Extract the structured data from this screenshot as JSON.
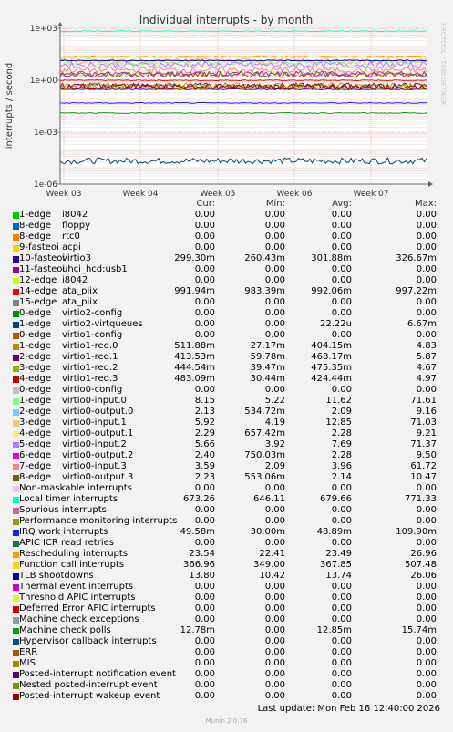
{
  "chart_data": {
    "type": "line",
    "title": "Individual interrupts - by month",
    "ylabel": "interrupts / second",
    "scale": "log",
    "ylim": [
      1e-06,
      1000
    ],
    "y_ticks": [
      "1e-06",
      "1e-03",
      "1e+00",
      "1e+03"
    ],
    "x_ticks": [
      "Week 03",
      "Week 04",
      "Week 05",
      "Week 06",
      "Week 07"
    ],
    "watermark": "RRDTOOL / TOBI OETIKER",
    "columns": [
      "Cur:",
      "Min:",
      "Avg:",
      "Max:"
    ],
    "series": [
      {
        "label": "1-edge",
        "device": "i8042",
        "color": "#00cc00",
        "values": [
          "0.00",
          "0.00",
          "0.00",
          "0.00"
        ]
      },
      {
        "label": "8-edge",
        "device": "floppy",
        "color": "#0066b3",
        "values": [
          "0.00",
          "0.00",
          "0.00",
          "0.00"
        ]
      },
      {
        "label": "8-edge",
        "device": "rtc0",
        "color": "#ff8000",
        "values": [
          "0.00",
          "0.00",
          "0.00",
          "0.00"
        ]
      },
      {
        "label": "9-fasteoi",
        "device": "acpi",
        "color": "#ffcc00",
        "values": [
          "0.00",
          "0.00",
          "0.00",
          "0.00"
        ]
      },
      {
        "label": "10-fasteoi",
        "device": "virtio3",
        "color": "#330099",
        "values": [
          "299.30m",
          "260.43m",
          "301.88m",
          "326.67m"
        ]
      },
      {
        "label": "11-fasteoi",
        "device": "uhci_hcd:usb1",
        "color": "#990099",
        "values": [
          "0.00",
          "0.00",
          "0.00",
          "0.00"
        ]
      },
      {
        "label": "12-edge",
        "device": "i8042",
        "color": "#ccff00",
        "values": [
          "0.00",
          "0.00",
          "0.00",
          "0.00"
        ]
      },
      {
        "label": "14-edge",
        "device": "ata_piix",
        "color": "#ff0000",
        "values": [
          "991.94m",
          "983.39m",
          "992.06m",
          "997.22m"
        ]
      },
      {
        "label": "15-edge",
        "device": "ata_piix",
        "color": "#808080",
        "values": [
          "0.00",
          "0.00",
          "0.00",
          "0.00"
        ]
      },
      {
        "label": "0-edge",
        "device": "virtio2-config",
        "color": "#008f00",
        "values": [
          "0.00",
          "0.00",
          "0.00",
          "0.00"
        ]
      },
      {
        "label": "1-edge",
        "device": "virtio2-virtqueues",
        "color": "#00487d",
        "values": [
          "0.00",
          "0.00",
          "22.22u",
          "6.67m"
        ]
      },
      {
        "label": "0-edge",
        "device": "virtio1-config",
        "color": "#b35a00",
        "values": [
          "0.00",
          "0.00",
          "0.00",
          "0.00"
        ]
      },
      {
        "label": "1-edge",
        "device": "virtio1-req.0",
        "color": "#b38f00",
        "values": [
          "511.88m",
          "27.17m",
          "404.15m",
          "4.83"
        ]
      },
      {
        "label": "2-edge",
        "device": "virtio1-req.1",
        "color": "#6b006b",
        "values": [
          "413.53m",
          "59.78m",
          "468.17m",
          "5.87"
        ]
      },
      {
        "label": "3-edge",
        "device": "virtio1-req.2",
        "color": "#8fb300",
        "values": [
          "444.54m",
          "39.47m",
          "475.35m",
          "4.67"
        ]
      },
      {
        "label": "4-edge",
        "device": "virtio1-req.3",
        "color": "#b30000",
        "values": [
          "483.09m",
          "30.44m",
          "424.44m",
          "4.97"
        ]
      },
      {
        "label": "0-edge",
        "device": "virtio0-config",
        "color": "#bebebe",
        "values": [
          "0.00",
          "0.00",
          "0.00",
          "0.00"
        ]
      },
      {
        "label": "1-edge",
        "device": "virtio0-input.0",
        "color": "#80ff80",
        "values": [
          "8.15",
          "5.22",
          "11.62",
          "71.61"
        ]
      },
      {
        "label": "2-edge",
        "device": "virtio0-output.0",
        "color": "#80c9ff",
        "values": [
          "2.13",
          "534.72m",
          "2.09",
          "9.16"
        ]
      },
      {
        "label": "3-edge",
        "device": "virtio0-input.1",
        "color": "#ffc080",
        "values": [
          "5.92",
          "4.19",
          "12.85",
          "71.03"
        ]
      },
      {
        "label": "4-edge",
        "device": "virtio0-output.1",
        "color": "#ffe680",
        "values": [
          "2.29",
          "657.42m",
          "2.28",
          "9.21"
        ]
      },
      {
        "label": "5-edge",
        "device": "virtio0-input.2",
        "color": "#aa80ff",
        "values": [
          "5.66",
          "3.92",
          "7.69",
          "71.37"
        ]
      },
      {
        "label": "6-edge",
        "device": "virtio0-output.2",
        "color": "#ee00cc",
        "values": [
          "2.40",
          "750.03m",
          "2.28",
          "9.50"
        ]
      },
      {
        "label": "7-edge",
        "device": "virtio0-input.3",
        "color": "#ff8080",
        "values": [
          "3.59",
          "2.09",
          "3.96",
          "61.72"
        ]
      },
      {
        "label": "8-edge",
        "device": "virtio0-output.3",
        "color": "#666600",
        "values": [
          "2.23",
          "553.06m",
          "2.14",
          "10.47"
        ]
      },
      {
        "label": "Non-maskable interrupts",
        "device": "",
        "color": "#ffbfff",
        "values": [
          "0.00",
          "0.00",
          "0.00",
          "0.00"
        ]
      },
      {
        "label": "Local timer interrupts",
        "device": "",
        "color": "#00ffcc",
        "values": [
          "673.26",
          "646.11",
          "679.66",
          "771.33"
        ]
      },
      {
        "label": "Spurious interrupts",
        "device": "",
        "color": "#cc6699",
        "values": [
          "0.00",
          "0.00",
          "0.00",
          "0.00"
        ]
      },
      {
        "label": "Performance monitoring interrupts",
        "device": "",
        "color": "#999900",
        "values": [
          "0.00",
          "0.00",
          "0.00",
          "0.00"
        ]
      },
      {
        "label": "IRQ work interrupts",
        "device": "",
        "color": "#1a1aff",
        "values": [
          "49.58m",
          "30.00m",
          "48.89m",
          "109.90m"
        ]
      },
      {
        "label": "APIC ICR read retries",
        "device": "",
        "color": "#0a7a52",
        "values": [
          "0.00",
          "0.00",
          "0.00",
          "0.00"
        ]
      },
      {
        "label": "Rescheduling interrupts",
        "device": "",
        "color": "#ff9900",
        "values": [
          "23.54",
          "22.41",
          "23.49",
          "26.96"
        ]
      },
      {
        "label": "Function call interrupts",
        "device": "",
        "color": "#ffd500",
        "values": [
          "366.96",
          "349.00",
          "367.85",
          "507.48"
        ]
      },
      {
        "label": "TLB shootdowns",
        "device": "",
        "color": "#000099",
        "values": [
          "13.80",
          "10.42",
          "13.74",
          "26.06"
        ]
      },
      {
        "label": "Thermal event interrupts",
        "device": "",
        "color": "#cc00cc",
        "values": [
          "0.00",
          "0.00",
          "0.00",
          "0.00"
        ]
      },
      {
        "label": "Threshold APIC interrupts",
        "device": "",
        "color": "#ccff33",
        "values": [
          "0.00",
          "0.00",
          "0.00",
          "0.00"
        ]
      },
      {
        "label": "Deferred Error APIC interrupts",
        "device": "",
        "color": "#cc0000",
        "values": [
          "0.00",
          "0.00",
          "0.00",
          "0.00"
        ]
      },
      {
        "label": "Machine check exceptions",
        "device": "",
        "color": "#999999",
        "values": [
          "0.00",
          "0.00",
          "0.00",
          "0.00"
        ]
      },
      {
        "label": "Machine check polls",
        "device": "",
        "color": "#00a300",
        "values": [
          "12.78m",
          "0.00",
          "12.85m",
          "15.74m"
        ]
      },
      {
        "label": "Hypervisor callback interrupts",
        "device": "",
        "color": "#005580",
        "values": [
          "0.00",
          "0.00",
          "0.00",
          "0.00"
        ]
      },
      {
        "label": "ERR",
        "device": "",
        "color": "#a65900",
        "values": [
          "0.00",
          "0.00",
          "0.00",
          "0.00"
        ]
      },
      {
        "label": "MIS",
        "device": "",
        "color": "#a68a00",
        "values": [
          "0.00",
          "0.00",
          "0.00",
          "0.00"
        ]
      },
      {
        "label": "Posted-interrupt notification event",
        "device": "",
        "color": "#5c005c",
        "values": [
          "0.00",
          "0.00",
          "0.00",
          "0.00"
        ]
      },
      {
        "label": "Nested posted-interrupt event",
        "device": "",
        "color": "#7a9900",
        "values": [
          "0.00",
          "0.00",
          "0.00",
          "0.00"
        ]
      },
      {
        "label": "Posted-interrupt wakeup event",
        "device": "",
        "color": "#990000",
        "values": [
          "0.00",
          "0.00",
          "0.00",
          "0.00"
        ]
      }
    ]
  },
  "footer": {
    "last_update": "Last update: Mon Feb 16 12:40:00 2026",
    "munin": "Munin 2.0.76"
  }
}
